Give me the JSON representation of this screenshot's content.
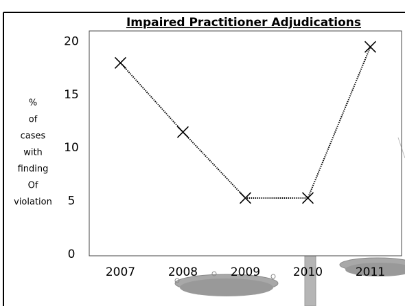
{
  "chart_data": {
    "type": "line",
    "title": "Impaired Practitioner Adjudications",
    "y_label_lines": [
      "%",
      "of",
      "cases",
      "with",
      "finding",
      "Of",
      "violation"
    ],
    "categories": [
      "2007",
      "2008",
      "2009",
      "2010",
      "2011"
    ],
    "values": [
      18,
      11.5,
      5.3,
      5.3,
      19.5
    ],
    "color": "#000000",
    "ylim": [
      0,
      21
    ],
    "yticks": [
      0,
      5,
      10,
      15,
      20
    ],
    "grid": false
  }
}
